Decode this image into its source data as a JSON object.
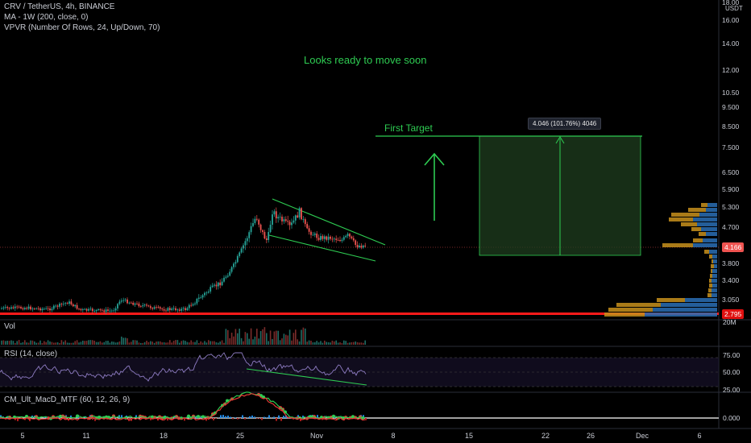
{
  "header": {
    "symbol_line": "CRV / TetherUS, 4h, BINANCE",
    "ma_line": "MA - 1W (200, close, 0)",
    "vpvr_line": "VPVR (Number Of Rows, 24, Up/Down, 70)"
  },
  "annotations": {
    "headline": "Looks ready to move soon",
    "target_label": "First Target",
    "target_tooltip": "4.046 (101.76%) 4046"
  },
  "price_axis": {
    "currency": "USDT",
    "ticks": [
      "18.00",
      "16.00",
      "14.00",
      "12.00",
      "10.50",
      "9.500",
      "8.500",
      "7.500",
      "6.500",
      "5.900",
      "5.300",
      "4.700",
      "3.800",
      "3.400",
      "3.050"
    ],
    "current_price": "4.166",
    "support_price": "2.795"
  },
  "panes": {
    "volume": {
      "label": "Vol",
      "axis_label": "20M"
    },
    "rsi": {
      "label": "RSI (14, close)",
      "ticks": [
        "75.00",
        "50.00",
        "25.00"
      ]
    },
    "macd": {
      "label": "CM_Ult_MacD_MTF (60, 12, 26, 9)",
      "ticks": [
        "0.000"
      ]
    }
  },
  "time_axis": {
    "ticks": [
      "5",
      "11",
      "18",
      "25",
      "Nov",
      "8",
      "15",
      "22",
      "26",
      "Dec",
      "6"
    ]
  },
  "colors": {
    "background": "#000000",
    "up_candle": "#26a69a",
    "down_candle": "#ef5350",
    "annotation": "#2ecc52",
    "support_line": "#ff1a1a",
    "target_box": "#1f3d1f",
    "rsi_line": "#8e7cc3",
    "vpvr_up": "#2a6fb5",
    "vpvr_down": "#c8901c"
  }
}
